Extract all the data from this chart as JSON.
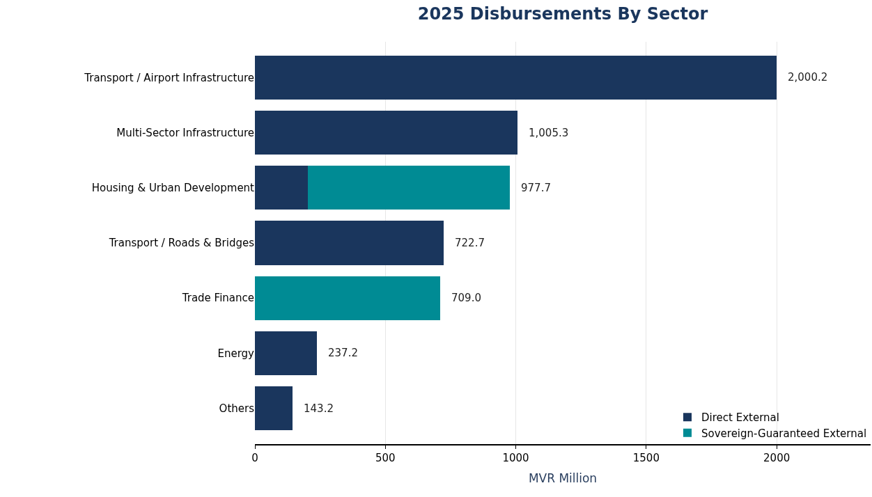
{
  "chart_data": {
    "type": "bar",
    "orientation": "horizontal",
    "stacked": true,
    "title": "2025 Disbursements By Sector",
    "xlabel": "MVR Million",
    "categories": [
      "Transport / Airport Infrastructure",
      "Multi-Sector Infrastructure",
      "Housing & Urban Development",
      "Transport / Roads & Bridges",
      "Trade Finance",
      "Energy",
      "Others"
    ],
    "series": [
      {
        "name": "Direct External",
        "color": "#1a365d",
        "values": [
          2000.2,
          1005.3,
          203,
          722.7,
          null,
          237.2,
          143.2
        ]
      },
      {
        "name": "Sovereign-Guaranteed External",
        "color": "#008b94",
        "values": [
          null,
          null,
          774.7,
          null,
          709.0,
          null,
          null
        ]
      }
    ],
    "totals": [
      "2,000.2",
      "1,005.3",
      "977.7",
      "722.7",
      "709.0",
      "237.2",
      "143.2"
    ],
    "xlim": [
      0,
      2360
    ],
    "xticks": [
      0,
      500,
      1000,
      1500,
      2000
    ],
    "grid": "x",
    "legend": "bottom right"
  }
}
